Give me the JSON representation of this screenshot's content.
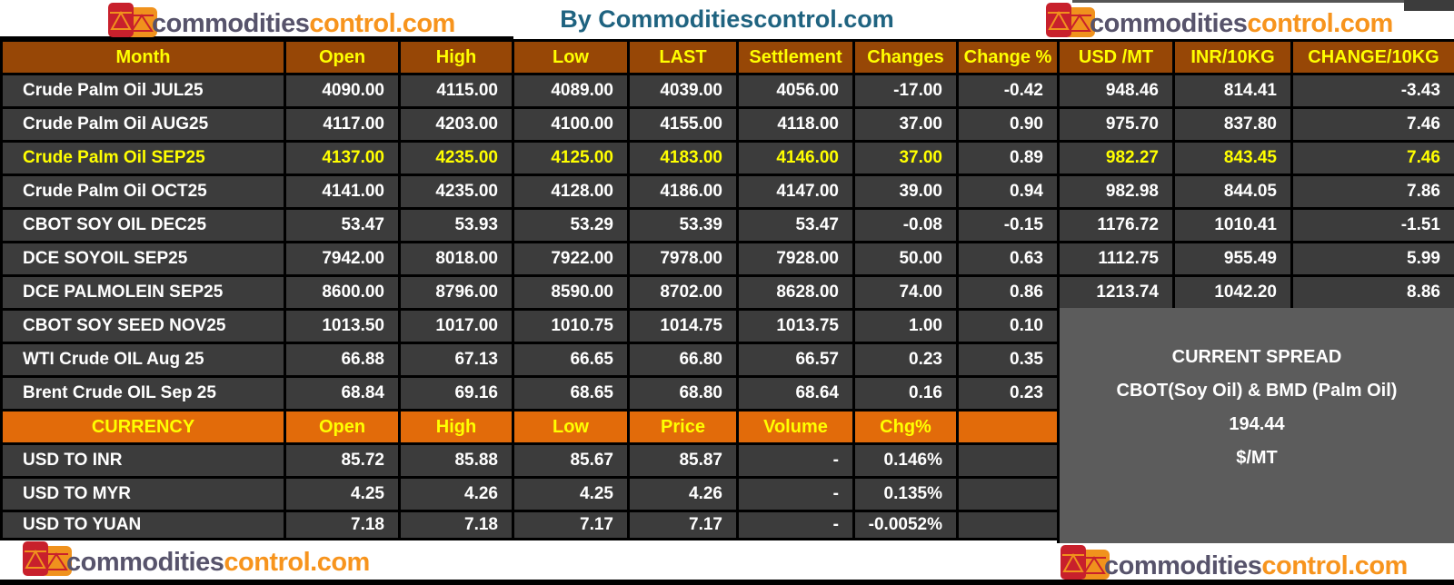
{
  "header": {
    "title": "By Commoditiescontrol.com"
  },
  "logo": {
    "part1": "commodities",
    "part2": "control.com"
  },
  "colors": {
    "header_brown": "#974706",
    "currency_orange": "#E26B0A",
    "row_dark_gray": "#3C3C3C",
    "spread_gray": "#5C5C5C",
    "highlight_yellow": "#FFFF00",
    "title_teal": "#1F6380",
    "logo_red": "#C8202C",
    "logo_orange": "#F0921D",
    "logo_text_dark": "#57536B",
    "logo_text_orange": "#F7941D"
  },
  "chart_data": [
    {
      "type": "table",
      "name": "futures",
      "title": "Commodity futures prices",
      "columns": [
        "Month",
        "Open",
        "High",
        "Low",
        "LAST",
        "Settlement",
        "Changes",
        "Change %",
        "USD /MT",
        "INR/10KG",
        "CHANGE/10KG"
      ],
      "highlight_row": 2,
      "rows": [
        [
          "Crude Palm Oil JUL25",
          "4090.00",
          "4115.00",
          "4089.00",
          "4039.00",
          "4056.00",
          "-17.00",
          "-0.42",
          "948.46",
          "814.41",
          "-3.43"
        ],
        [
          "Crude Palm Oil AUG25",
          "4117.00",
          "4203.00",
          "4100.00",
          "4155.00",
          "4118.00",
          "37.00",
          "0.90",
          "975.70",
          "837.80",
          "7.46"
        ],
        [
          "Crude Palm Oil SEP25",
          "4137.00",
          "4235.00",
          "4125.00",
          "4183.00",
          "4146.00",
          "37.00",
          "0.89",
          "982.27",
          "843.45",
          "7.46"
        ],
        [
          "Crude Palm Oil OCT25",
          "4141.00",
          "4235.00",
          "4128.00",
          "4186.00",
          "4147.00",
          "39.00",
          "0.94",
          "982.98",
          "844.05",
          "7.86"
        ],
        [
          "CBOT SOY OIL DEC25",
          "53.47",
          "53.93",
          "53.29",
          "53.39",
          "53.47",
          "-0.08",
          "-0.15",
          "1176.72",
          "1010.41",
          "-1.51"
        ],
        [
          "DCE SOYOIL SEP25",
          "7942.00",
          "8018.00",
          "7922.00",
          "7978.00",
          "7928.00",
          "50.00",
          "0.63",
          "1112.75",
          "955.49",
          "5.99"
        ],
        [
          "DCE PALMOLEIN SEP25",
          "8600.00",
          "8796.00",
          "8590.00",
          "8702.00",
          "8628.00",
          "74.00",
          "0.86",
          "1213.74",
          "1042.20",
          "8.86"
        ],
        [
          "CBOT SOY SEED NOV25",
          "1013.50",
          "1017.00",
          "1010.75",
          "1014.75",
          "1013.75",
          "1.00",
          "0.10",
          null,
          null,
          null
        ],
        [
          "WTI Crude OIL Aug 25",
          "66.88",
          "67.13",
          "66.65",
          "66.80",
          "66.57",
          "0.23",
          "0.35",
          null,
          null,
          null
        ],
        [
          "Brent Crude OIL Sep 25",
          "68.84",
          "69.16",
          "68.65",
          "68.80",
          "68.64",
          "0.16",
          "0.23",
          null,
          null,
          null
        ]
      ]
    },
    {
      "type": "table",
      "name": "currency",
      "title": "Currency rates",
      "columns": [
        "CURRENCY",
        "Open",
        "High",
        "Low",
        "Price",
        "Volume",
        "Chg%"
      ],
      "rows": [
        [
          "USD TO INR",
          "85.72",
          "85.88",
          "85.67",
          "85.87",
          "-",
          "0.146%"
        ],
        [
          "USD TO MYR",
          "4.25",
          "4.26",
          "4.25",
          "4.26",
          "-",
          "0.135%"
        ],
        [
          "USD TO YUAN",
          "7.18",
          "7.18",
          "7.17",
          "7.17",
          "-",
          "-0.0052%"
        ]
      ]
    },
    {
      "type": "table",
      "name": "spread",
      "title": "Current spread",
      "rows": [
        [
          "CURRENT SPREAD"
        ],
        [
          "CBOT(Soy Oil) & BMD (Palm Oil)"
        ],
        [
          "194.44"
        ],
        [
          "$/MT"
        ]
      ]
    }
  ]
}
